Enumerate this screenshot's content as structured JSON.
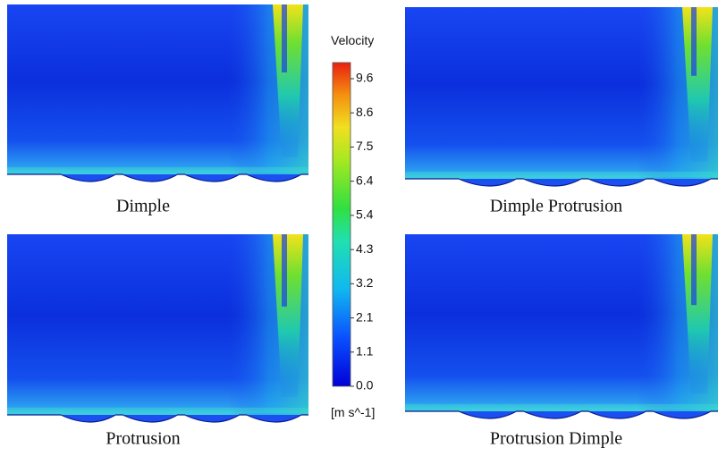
{
  "panels": [
    {
      "label": "Dimple"
    },
    {
      "label": "Dimple Protrusion"
    },
    {
      "label": "Protrusion"
    },
    {
      "label": "Protrusion Dimple"
    }
  ],
  "colorbar": {
    "title": "Velocity",
    "unit": "[m s^-1]",
    "ticks": [
      "9.6",
      "8.6",
      "7.5",
      "6.4",
      "5.4",
      "4.3",
      "3.2",
      "2.1",
      "1.1",
      "0.0"
    ]
  }
}
